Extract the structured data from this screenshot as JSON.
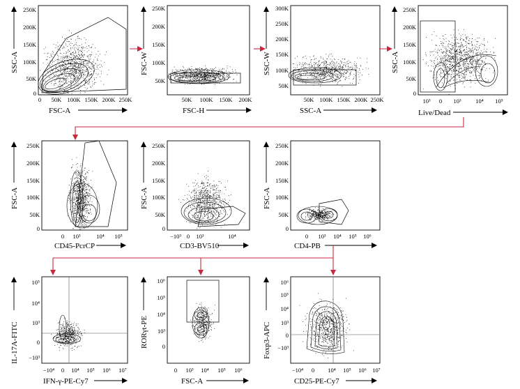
{
  "plots": [
    {
      "id": "p1",
      "x_label": "FSC-A",
      "y_label": "SSC-A",
      "y_ticks": [
        "250K",
        "200K",
        "150K",
        "100K",
        "50K",
        "0"
      ],
      "x_ticks": [
        "0",
        "50K",
        "100K",
        "150K",
        "200K",
        "250K"
      ]
    },
    {
      "id": "p2",
      "x_label": "FSC-H",
      "y_label": "FSC-W",
      "y_ticks": [
        "250K",
        "200K",
        "150K",
        "100K",
        "50K"
      ],
      "x_ticks": [
        "50K",
        "100K",
        "150K",
        "200K"
      ]
    },
    {
      "id": "p3",
      "x_label": "SSC-A",
      "y_label": "SSC-W",
      "y_ticks": [
        "300K",
        "250K",
        "200K",
        "150K",
        "100K",
        "50K"
      ],
      "x_ticks": [
        "50K",
        "100K",
        "150K",
        "200K",
        "250K"
      ]
    },
    {
      "id": "p4",
      "x_label": "Live/Dead",
      "y_label": "SSC-A",
      "y_ticks": [
        "250K",
        "200K",
        "150K",
        "100K",
        "50K",
        "0"
      ],
      "x_ticks": [
        "10³",
        "0",
        "10³",
        "10⁴",
        "10⁵"
      ]
    },
    {
      "id": "p5",
      "x_label": "CD45-PcrCP",
      "y_label": "FSC-A",
      "y_ticks": [
        "250K",
        "200K",
        "150K",
        "100K",
        "50K",
        "0"
      ],
      "x_ticks": [
        "0",
        "10³",
        "10⁴",
        "10⁵"
      ]
    },
    {
      "id": "p6",
      "x_label": "CD3-BV510",
      "y_label": "FSC-A",
      "y_ticks": [
        "250K",
        "200K",
        "150K",
        "100K",
        "50K",
        "0"
      ],
      "x_ticks": [
        "−10³",
        "0",
        "10³",
        "10⁴"
      ]
    },
    {
      "id": "p7",
      "x_label": "CD4-PB",
      "y_label": "FSC-A",
      "y_ticks": [
        "250K",
        "200K",
        "150K",
        "100K",
        "50K",
        "0"
      ],
      "x_ticks": [
        "0",
        "10³",
        "10⁴",
        "10⁵",
        "10⁶"
      ]
    },
    {
      "id": "p8",
      "x_label": "IFN-γ-PE-Cy7",
      "y_label": "IL-17A-FITC",
      "y_ticks": [
        "10⁵",
        "10⁴",
        "10³",
        "0",
        "−10³"
      ],
      "x_ticks": [
        "−10⁴",
        "0",
        "10⁴",
        "10⁵",
        "10⁶",
        "10⁷"
      ]
    },
    {
      "id": "p9",
      "x_label": "FSC-A",
      "y_label": "RORγt-PE",
      "y_ticks": [
        "10⁶",
        "10⁵",
        "10⁴",
        "10³",
        "0"
      ],
      "x_ticks": [
        "0",
        "10³",
        "10⁴",
        "10⁵",
        "10⁶"
      ]
    },
    {
      "id": "p10",
      "x_label": "CD25-PE-Cy7",
      "y_label": "Foxp3-APC",
      "y_ticks": [
        "10⁶",
        "10⁵",
        "10⁴",
        "10³",
        "0",
        "−10³"
      ],
      "x_ticks": [
        "−10⁴",
        "0",
        "10⁴",
        "10⁵",
        "10⁶",
        "10⁷"
      ]
    }
  ],
  "colors": {
    "arrow": "#c8283c",
    "axis": "#000000",
    "events": "#000000"
  }
}
